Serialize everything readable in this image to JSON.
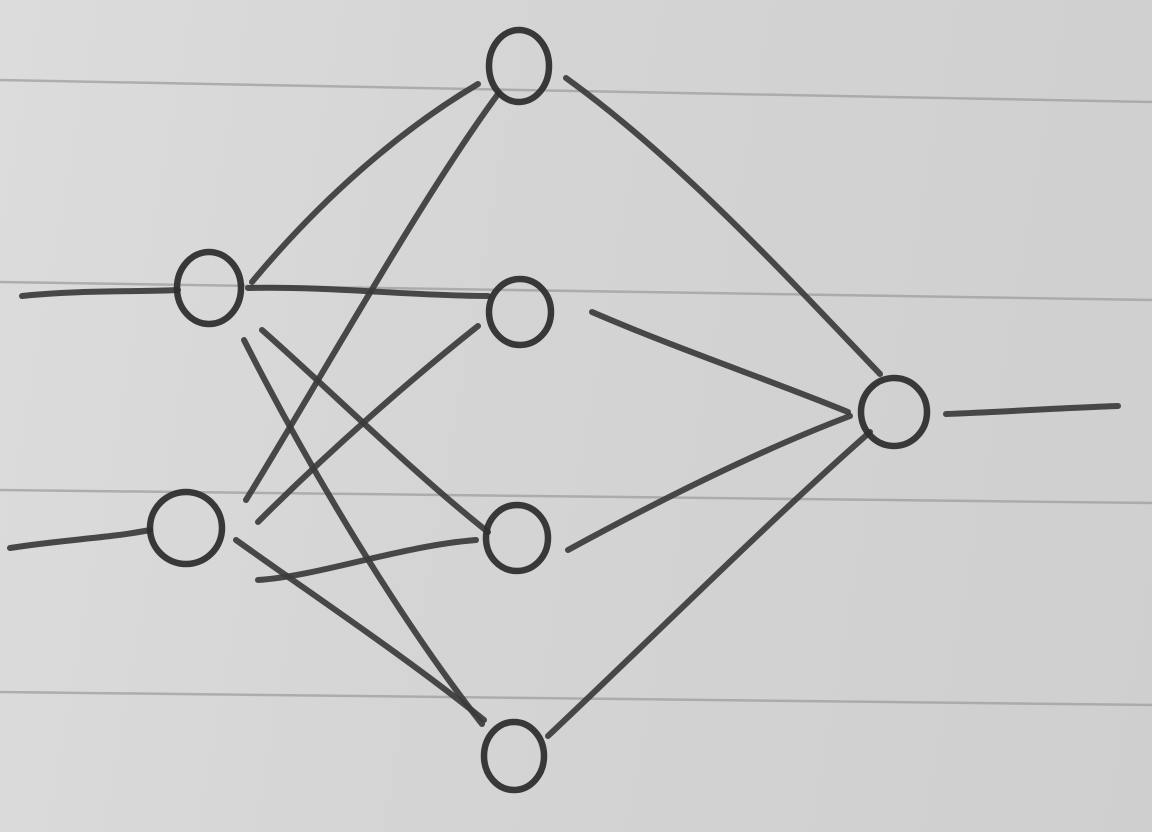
{
  "diagram": {
    "kind": "neural-network-sketch",
    "layers": [
      {
        "name": "input",
        "nodes": 2
      },
      {
        "name": "hidden",
        "nodes": 4
      },
      {
        "name": "output",
        "nodes": 1
      }
    ],
    "connections": "fully-connected",
    "input_arrows": 2,
    "output_arrows": 1,
    "ink_color": "#3b3b3b",
    "paper_color": "#d6d6d6",
    "rule_color": "#9f9f9f"
  }
}
